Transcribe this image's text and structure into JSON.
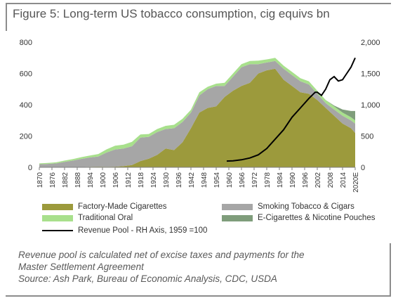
{
  "header": {
    "title": "Figure 5: Long-term US tobacco consumption, cig equivs bn"
  },
  "chart_data": {
    "type": "area",
    "title": "Figure 5: Long-term US tobacco consumption, cig equivs bn",
    "x": [
      1870,
      1874,
      1878,
      1882,
      1886,
      1890,
      1894,
      1898,
      1902,
      1906,
      1910,
      1914,
      1918,
      1922,
      1926,
      1930,
      1934,
      1938,
      1942,
      1946,
      1950,
      1954,
      1958,
      1962,
      1966,
      1970,
      1974,
      1978,
      1982,
      1986,
      1990,
      1994,
      1998,
      2002,
      2006,
      2010,
      2014,
      2018,
      2020
    ],
    "xlim": [
      1870,
      2020
    ],
    "ylim": [
      0,
      800
    ],
    "y2lim": [
      0,
      2000
    ],
    "yticks": [
      "0",
      "200",
      "400",
      "600",
      "800"
    ],
    "y2ticks": [
      "0",
      "500",
      "1,000",
      "1,500",
      "2,000"
    ],
    "xticks": [
      "1870",
      "1876",
      "1882",
      "1888",
      "1894",
      "1900",
      "1906",
      "1912",
      "1918",
      "1924",
      "1930",
      "1936",
      "1942",
      "1948",
      "1954",
      "1960",
      "1966",
      "1972",
      "1978",
      "1984",
      "1990",
      "1996",
      "2002",
      "2008",
      "2014",
      "2020E"
    ],
    "series": [
      {
        "name": "Factory-Made Cigarettes",
        "color": "#9c9a3c",
        "kind": "area",
        "values": [
          0,
          0,
          0,
          0,
          1,
          2,
          3,
          4,
          3,
          4,
          8,
          15,
          40,
          55,
          80,
          120,
          110,
          160,
          250,
          350,
          380,
          390,
          450,
          490,
          520,
          540,
          600,
          620,
          630,
          560,
          520,
          480,
          470,
          430,
          380,
          330,
          280,
          250,
          220
        ]
      },
      {
        "name": "Smoking Tobacco & Cigars",
        "color": "#a6a6a6",
        "kind": "area",
        "values": [
          20,
          22,
          25,
          35,
          42,
          52,
          60,
          65,
          92,
          110,
          112,
          120,
          150,
          140,
          145,
          125,
          140,
          130,
          100,
          110,
          120,
          130,
          70,
          90,
          120,
          120,
          60,
          50,
          50,
          70,
          70,
          70,
          60,
          40,
          30,
          40,
          50,
          50,
          60
        ]
      },
      {
        "name": "Traditional Oral",
        "color": "#a8e08c",
        "kind": "area",
        "values": [
          5,
          6,
          7,
          8,
          10,
          11,
          12,
          16,
          20,
          24,
          25,
          28,
          20,
          18,
          20,
          20,
          22,
          20,
          18,
          20,
          15,
          15,
          20,
          20,
          20,
          20,
          22,
          20,
          20,
          20,
          20,
          20,
          20,
          20,
          20,
          20,
          20,
          20,
          20
        ]
      },
      {
        "name": "E-Cigarettes & Nicotine Pouches",
        "color": "#7f9d7b",
        "kind": "area",
        "values": [
          0,
          0,
          0,
          0,
          0,
          0,
          0,
          0,
          0,
          0,
          0,
          0,
          0,
          0,
          0,
          0,
          0,
          0,
          0,
          0,
          0,
          0,
          0,
          0,
          0,
          0,
          0,
          0,
          0,
          0,
          0,
          0,
          0,
          0,
          0,
          5,
          20,
          40,
          60
        ]
      }
    ],
    "line_series": {
      "name": "Revenue Pool - RH Axis, 1959 =100",
      "color": "#000000",
      "x": [
        1959,
        1962,
        1966,
        1970,
        1974,
        1978,
        1982,
        1986,
        1990,
        1994,
        1998,
        2001,
        2002,
        2004,
        2006,
        2008,
        2010,
        2012,
        2014,
        2016,
        2018,
        2020
      ],
      "values": [
        100,
        105,
        120,
        150,
        200,
        300,
        450,
        600,
        800,
        950,
        1100,
        1200,
        1200,
        1150,
        1250,
        1400,
        1450,
        1380,
        1400,
        1500,
        1600,
        1750
      ]
    },
    "legend": "bottom",
    "grid": false
  },
  "notes": {
    "line1": "Revenue pool is calculated net of excise taxes and payments for the",
    "line2": "Master Settlement Agreement",
    "source": "Source: Ash Park, Bureau of Economic Analysis, CDC, USDA"
  }
}
